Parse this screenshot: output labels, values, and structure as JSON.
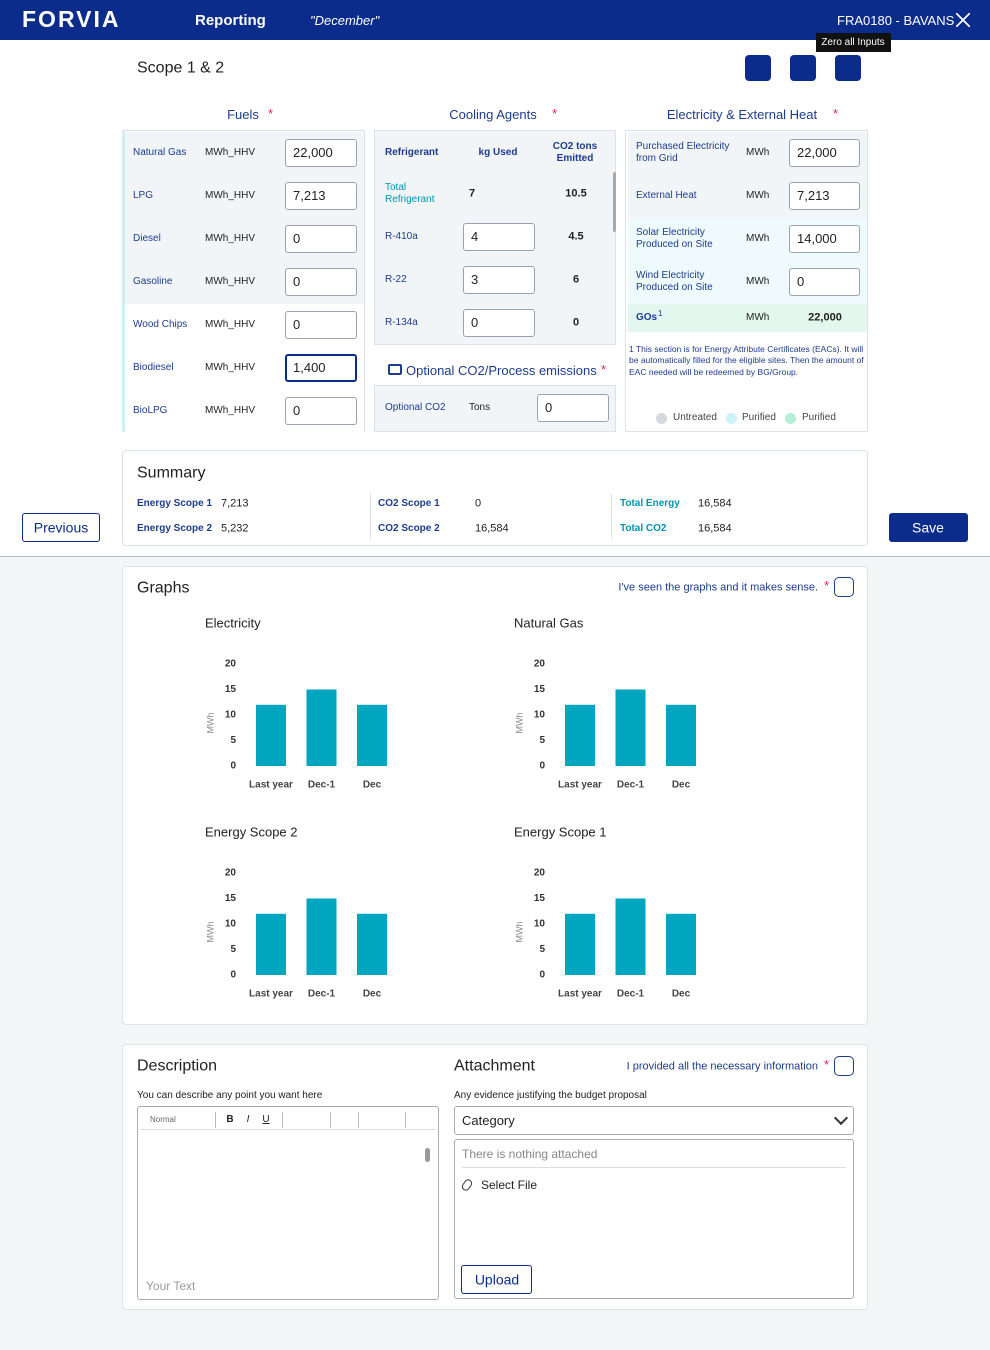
{
  "header": {
    "logo": "FORVIA",
    "section": "Reporting",
    "period": "\"December\"",
    "site": "FRA0180 - BAVANS"
  },
  "scope": {
    "title": "Scope 1 & 2",
    "tooltip": "Zero all Inputs",
    "required": "*"
  },
  "fuels": {
    "title": "Fuels",
    "rows": [
      {
        "name": "Natural Gas",
        "unit": "MWh_HHV",
        "value": "22,000"
      },
      {
        "name": "LPG",
        "unit": "MWh_HHV",
        "value": "7,213"
      },
      {
        "name": "Diesel",
        "unit": "MWh_HHV",
        "value": "0"
      },
      {
        "name": "Gasoline",
        "unit": "MWh_HHV",
        "value": "0"
      },
      {
        "name": "Wood Chips",
        "unit": "MWh_HHV",
        "value": "0"
      },
      {
        "name": "Biodiesel",
        "unit": "MWh_HHV",
        "value": "1,400"
      },
      {
        "name": "BioLPG",
        "unit": "MWh_HHV",
        "value": "0"
      }
    ]
  },
  "cooling": {
    "title": "Cooling Agents",
    "headers": [
      "Refrigerant",
      "kg Used",
      "CO2 tons Emitted"
    ],
    "total": {
      "name": "Total Refrigerant",
      "kg": "7",
      "co2": "10.5"
    },
    "rows": [
      {
        "name": "R-410a",
        "kg": "4",
        "co2": "4.5"
      },
      {
        "name": "R-22",
        "kg": "3",
        "co2": "6"
      },
      {
        "name": "R-134a",
        "kg": "0",
        "co2": "0"
      }
    ]
  },
  "optional": {
    "title": "Optional CO2/Process emissions",
    "name": "Optional CO2",
    "unit": "Tons",
    "value": "0"
  },
  "electricity": {
    "title": "Electricity & External Heat",
    "rows": [
      {
        "name": "Purchased Electricity from Grid",
        "unit": "MWh",
        "value": "22,000"
      },
      {
        "name": "External Heat",
        "unit": "MWh",
        "value": "7,213"
      },
      {
        "name": "Solar Electricity Produced on Site",
        "unit": "MWh",
        "value": "14,000"
      },
      {
        "name": "Wind Electricity Produced on Site",
        "unit": "MWh",
        "value": "0"
      }
    ],
    "gos": {
      "name": "GOs",
      "note": "1",
      "unit": "MWh",
      "value": "22,000"
    },
    "footnote": "1 This section is for Energy Attribute Certificates (EACs). It will be automatically filled for the eligible sites. Then the amount of EAC needed will be redeemed by BG/Group.",
    "legend": [
      "Untreated",
      "Purified",
      "Purified"
    ]
  },
  "summary": {
    "title": "Summary",
    "items": [
      {
        "label": "Energy Scope 1",
        "value": "7,213"
      },
      {
        "label": "Energy Scope 2",
        "value": "5,232"
      },
      {
        "label": "CO2 Scope 1",
        "value": "0"
      },
      {
        "label": "CO2 Scope 2",
        "value": "16,584"
      },
      {
        "label": "Total Energy",
        "value": "16,584"
      },
      {
        "label": "Total CO2",
        "value": "16,584"
      }
    ]
  },
  "nav": {
    "previous": "Previous",
    "save": "Save"
  },
  "graphs": {
    "title": "Graphs",
    "confirm": "I've seen the graphs and it makes sense."
  },
  "chart_data": [
    {
      "type": "bar",
      "title": "Electricity",
      "y_label": "MWh",
      "categories": [
        "Last year",
        "Dec-1",
        "Dec"
      ],
      "values": [
        12,
        15,
        12
      ],
      "color": "#00a5c0",
      "ylim": [
        0,
        20
      ],
      "yticks": [
        0,
        5,
        10,
        15,
        20
      ]
    },
    {
      "type": "bar",
      "title": "Natural Gas",
      "y_label": "MWh",
      "categories": [
        "Last year",
        "Dec-1",
        "Dec"
      ],
      "values": [
        12,
        15,
        12
      ],
      "color": "#00a5c0",
      "ylim": [
        0,
        20
      ],
      "yticks": [
        0,
        5,
        10,
        15,
        20
      ]
    },
    {
      "type": "bar",
      "title": "Energy Scope 2",
      "y_label": "MWh",
      "categories": [
        "Last year",
        "Dec-1",
        "Dec"
      ],
      "values": [
        12,
        15,
        12
      ],
      "color": "#00a5c0",
      "ylim": [
        0,
        20
      ],
      "yticks": [
        0,
        5,
        10,
        15,
        20
      ]
    },
    {
      "type": "bar",
      "title": "Energy Scope 1",
      "y_label": "MWh",
      "categories": [
        "Last year",
        "Dec-1",
        "Dec"
      ],
      "values": [
        12,
        15,
        12
      ],
      "color": "#00a5c0",
      "ylim": [
        0,
        20
      ],
      "yticks": [
        0,
        5,
        10,
        15,
        20
      ]
    }
  ],
  "description": {
    "title": "Description",
    "hint": "You can describe any point you want here",
    "style": "Normal",
    "tools": [
      "B",
      "I",
      "U"
    ],
    "placeholder": "Your Text"
  },
  "attachment": {
    "title": "Attachment",
    "confirm": "I provided all the necessary information",
    "hint": "Any evidence justifying the budget proposal",
    "category": "Category",
    "empty": "There is nothing attached",
    "select": "Select File",
    "upload": "Upload"
  }
}
